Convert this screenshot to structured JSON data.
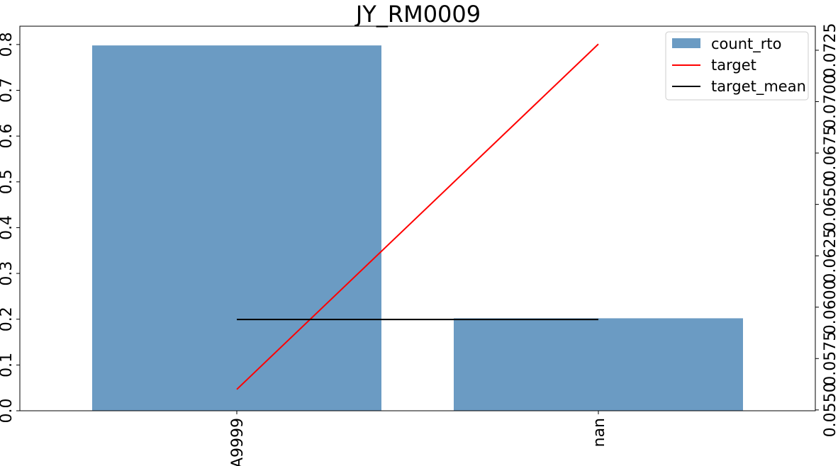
{
  "chart_data": {
    "type": "bar",
    "title": "JY_RM0009",
    "categories": [
      "A9999",
      "nan"
    ],
    "series": [
      {
        "name": "count_rto",
        "kind": "bar",
        "axis": "left",
        "color": "#6b9bc3",
        "values": [
          0.798,
          0.202
        ]
      },
      {
        "name": "target",
        "kind": "line",
        "axis": "right",
        "color": "#ff0000",
        "values": [
          0.056,
          0.0728
        ]
      },
      {
        "name": "target_mean",
        "kind": "line",
        "axis": "right",
        "color": "#000000",
        "values": [
          0.0594,
          0.0594
        ]
      }
    ],
    "left_axis": {
      "ylim": [
        0,
        0.84
      ],
      "ticks": [
        "0.0",
        "0.1",
        "0.2",
        "0.3",
        "0.4",
        "0.5",
        "0.6",
        "0.7",
        "0.8"
      ]
    },
    "right_axis": {
      "ylim": [
        0.05496,
        0.07367
      ],
      "ticks": [
        "0.0550",
        "0.0575",
        "0.0600",
        "0.0625",
        "0.0650",
        "0.0675",
        "0.0700",
        "0.0725"
      ]
    },
    "legend": {
      "position": "top-right",
      "entries": [
        "count_rto",
        "target",
        "target_mean"
      ]
    },
    "grid": false
  }
}
